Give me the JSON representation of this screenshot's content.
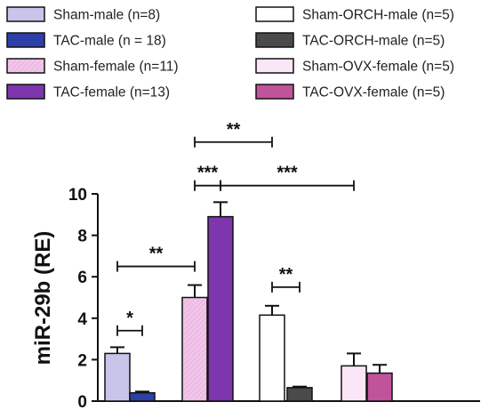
{
  "chart_data": {
    "type": "bar",
    "ylabel": "miR-29b (RE)",
    "ylim": [
      0,
      10
    ],
    "yticks": [
      0,
      2,
      4,
      6,
      8,
      10
    ],
    "grid": false,
    "legend_position": "top",
    "series": [
      {
        "name": "Sham-male (n=8)",
        "group": 0,
        "value": 2.3,
        "error": 0.3,
        "color": "#c8c4ea",
        "pattern": "none"
      },
      {
        "name": "TAC-male (n = 18)",
        "group": 0,
        "value": 0.4,
        "error": 0.06,
        "color": "#2e3fa8",
        "pattern": "none"
      },
      {
        "name": "Sham-female (n=11)",
        "group": 1,
        "value": 5.0,
        "error": 0.6,
        "color": "#f1c6ea",
        "pattern": "hatch"
      },
      {
        "name": "TAC-female (n=13)",
        "group": 1,
        "value": 8.9,
        "error": 0.7,
        "color": "#7d36ad",
        "pattern": "none"
      },
      {
        "name": "Sham-ORCH-male (n=5)",
        "group": 2,
        "value": 4.15,
        "error": 0.45,
        "color": "#ffffff",
        "pattern": "none"
      },
      {
        "name": "TAC-ORCH-male (n=5)",
        "group": 2,
        "value": 0.65,
        "error": 0.05,
        "color": "#4a4a4a",
        "pattern": "none"
      },
      {
        "name": "Sham-OVX-female (n=5)",
        "group": 3,
        "value": 1.7,
        "error": 0.6,
        "color": "#fbe6f7",
        "pattern": "none"
      },
      {
        "name": "TAC-OVX-female (n=5)",
        "group": 3,
        "value": 1.35,
        "error": 0.4,
        "color": "#c1539a",
        "pattern": "none"
      }
    ],
    "annotations": [
      {
        "label": "*",
        "from": 0,
        "to": 1,
        "y": 3.4,
        "ends": "capped"
      },
      {
        "label": "**",
        "from": 0,
        "to": 2,
        "y": 6.5,
        "ends": "capped"
      },
      {
        "label": "***",
        "from": 2,
        "to": 3,
        "y": 10.4,
        "ends": "capped"
      },
      {
        "label": "***",
        "from": 3,
        "to": 6,
        "y": 10.4,
        "ends": "capped"
      },
      {
        "label": "**",
        "from": 2,
        "to": 4,
        "y": 12.5,
        "ends": "capped"
      },
      {
        "label": "**",
        "from": 4,
        "to": 5,
        "y": 5.5,
        "ends": "capped"
      }
    ]
  }
}
